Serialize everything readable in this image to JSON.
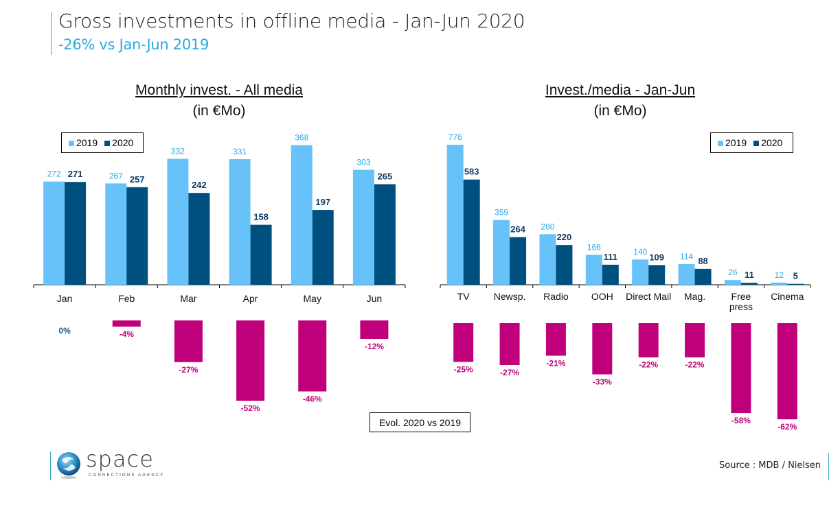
{
  "header": {
    "title": "Gross investments in offline media  -  Jan-Jun 2020",
    "subtitle": "-26% vs Jan-Jun 2019"
  },
  "colors": {
    "y2019": "#66c2f9",
    "y2020": "#00507f",
    "evol": "#c0007a",
    "label2019": "#29a9e0",
    "label2020": "#0d3b63",
    "evol_zero": "#1a5b8c"
  },
  "chart_data": [
    {
      "type": "bar",
      "title": "Monthly invest. - All media",
      "subtitle": "(in €Mo)",
      "categories": [
        "Jan",
        "Feb",
        "Mar",
        "Apr",
        "May",
        "Jun"
      ],
      "series": [
        {
          "name": "2019",
          "values": [
            272,
            267,
            332,
            331,
            368,
            303
          ]
        },
        {
          "name": "2020",
          "values": [
            271,
            257,
            242,
            158,
            197,
            265
          ]
        }
      ],
      "legend": [
        "2019",
        "2020"
      ],
      "legend_position": "top-left",
      "ylim": [
        0,
        370
      ],
      "grid": false,
      "evolution": {
        "label": "Evol. 2020 vs 2019",
        "values": [
          0,
          -4,
          -27,
          -52,
          -46,
          -12
        ],
        "labels": [
          "0%",
          "-4%",
          "-27%",
          "-52%",
          "-46%",
          "-12%"
        ]
      }
    },
    {
      "type": "bar",
      "title": "Invest./media - Jan-Jun",
      "subtitle": "(in €Mo)",
      "categories": [
        "TV",
        "Newsp.",
        "Radio",
        "OOH",
        "Direct Mail",
        "Mag.",
        "Free press",
        "Cinema"
      ],
      "series": [
        {
          "name": "2019",
          "values": [
            776,
            359,
            280,
            166,
            140,
            114,
            26,
            12
          ]
        },
        {
          "name": "2020",
          "values": [
            583,
            264,
            220,
            111,
            109,
            88,
            11,
            5
          ]
        }
      ],
      "legend": [
        "2019",
        "2020"
      ],
      "legend_position": "top-right",
      "ylim": [
        0,
        780
      ],
      "grid": false,
      "evolution": {
        "values": [
          -25,
          -27,
          -21,
          -33,
          -22,
          -22,
          -58,
          -62
        ],
        "labels": [
          "-25%",
          "-27%",
          "-21%",
          "-33%",
          "-22%",
          "-22%",
          "-58%",
          "-62%"
        ]
      }
    }
  ],
  "footer": {
    "logo_word": "space",
    "logo_tagline": "CONNECTIONS AGENCY",
    "source": "Source : MDB / Nielsen"
  }
}
